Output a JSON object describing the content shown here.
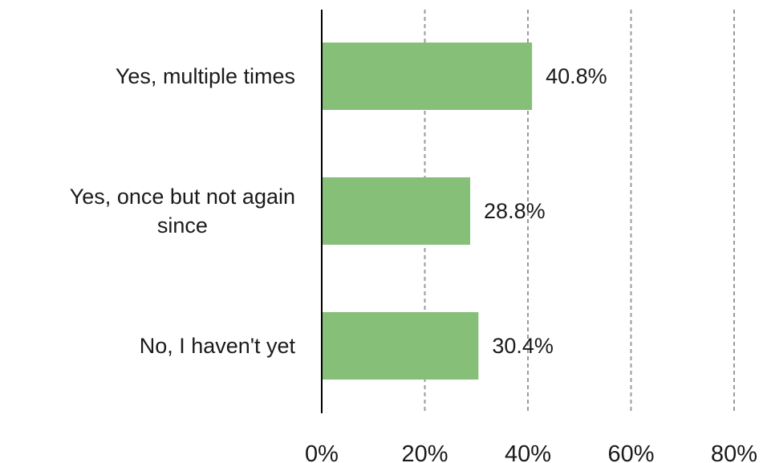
{
  "chart_data": {
    "type": "bar",
    "orientation": "horizontal",
    "categories": [
      "Yes, multiple times",
      "Yes, once but not again since",
      "No, I haven't yet"
    ],
    "category_lines": [
      [
        "Yes, multiple times"
      ],
      [
        "Yes, once but not again",
        "since"
      ],
      [
        "No, I haven't yet"
      ]
    ],
    "values": [
      40.8,
      28.8,
      30.4
    ],
    "value_labels": [
      "40.8%",
      "28.8%",
      "30.4%"
    ],
    "xlim": [
      0,
      80
    ],
    "xticks": [
      0,
      20,
      40,
      60,
      80
    ],
    "xtick_labels": [
      "0%",
      "20%",
      "40%",
      "60%",
      "80%"
    ],
    "grid": "vertical dashed",
    "bar_color": "#86bf77",
    "title": "",
    "xlabel": "",
    "ylabel": ""
  }
}
